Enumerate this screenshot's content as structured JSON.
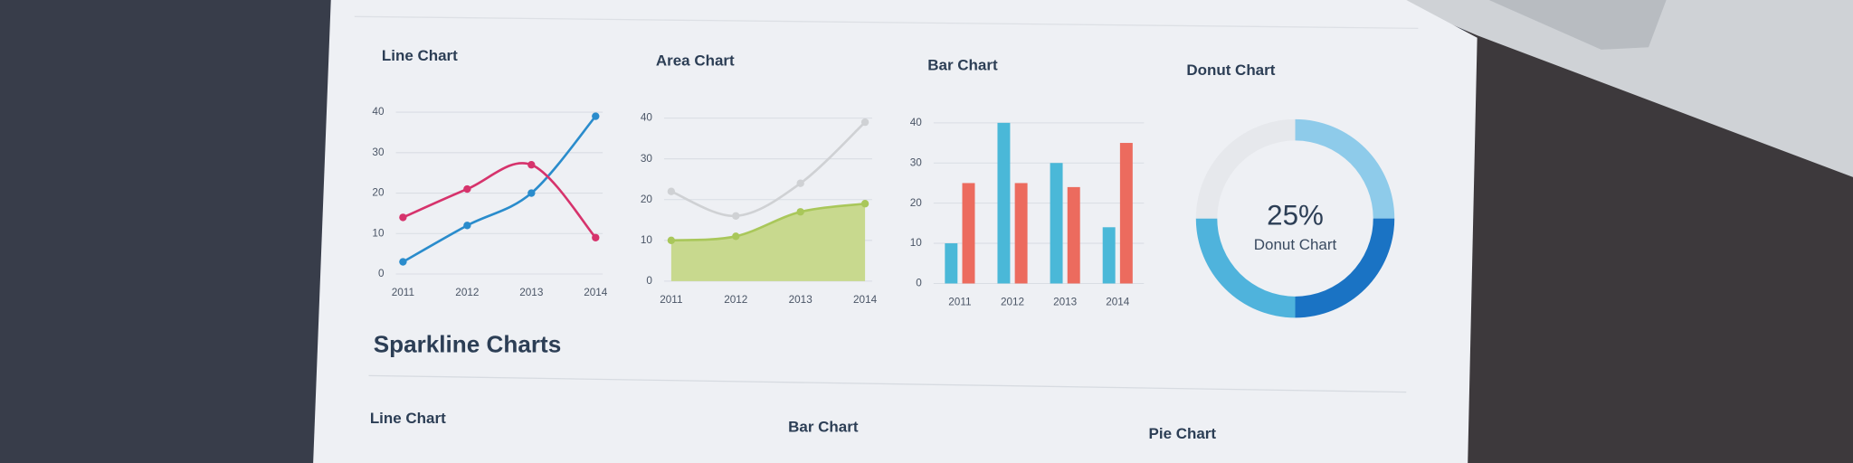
{
  "chart_data": [
    {
      "type": "line",
      "title": "Line Chart",
      "categories": [
        "2011",
        "2012",
        "2013",
        "2014"
      ],
      "series": [
        {
          "color": "#2a8ccc",
          "values": [
            3,
            12,
            20,
            39
          ]
        },
        {
          "color": "#d6336c",
          "values": [
            14,
            21,
            27,
            9
          ]
        }
      ],
      "ylim": [
        0,
        40
      ],
      "yticks": [
        0,
        10,
        20,
        30,
        40
      ],
      "grid": true
    },
    {
      "type": "area",
      "title": "Area Chart",
      "categories": [
        "2011",
        "2012",
        "2013",
        "2014"
      ],
      "series": [
        {
          "color": "#cfd1d4",
          "style": "line",
          "values": [
            22,
            16,
            24,
            39
          ]
        },
        {
          "color": "#a9c75a",
          "fill": "#c8d98e",
          "style": "area",
          "values": [
            10,
            11,
            17,
            19
          ]
        }
      ],
      "ylim": [
        0,
        40
      ],
      "yticks": [
        0,
        10,
        20,
        30,
        40
      ],
      "grid": true
    },
    {
      "type": "bar",
      "title": "Bar Chart",
      "categories": [
        "2011",
        "2012",
        "2013",
        "2014"
      ],
      "series": [
        {
          "color": "#4ab8d8",
          "values": [
            10,
            40,
            30,
            14
          ]
        },
        {
          "color": "#ec6b5e",
          "values": [
            25,
            25,
            24,
            35
          ]
        }
      ],
      "ylim": [
        0,
        40
      ],
      "yticks": [
        0,
        10,
        20,
        30,
        40
      ],
      "grid": true
    },
    {
      "type": "donut",
      "title": "Donut Chart",
      "values": [
        25,
        25,
        25,
        25
      ],
      "colors": [
        "#8ecbea",
        "#1a73c4",
        "#4fb3dc",
        "#e6e8ec"
      ],
      "center_label": "25%",
      "center_caption": "Donut Chart"
    }
  ],
  "sparkline": {
    "title": "Sparkline Charts",
    "items": [
      "Line Chart",
      "Bar Chart",
      "Pie Chart"
    ]
  }
}
